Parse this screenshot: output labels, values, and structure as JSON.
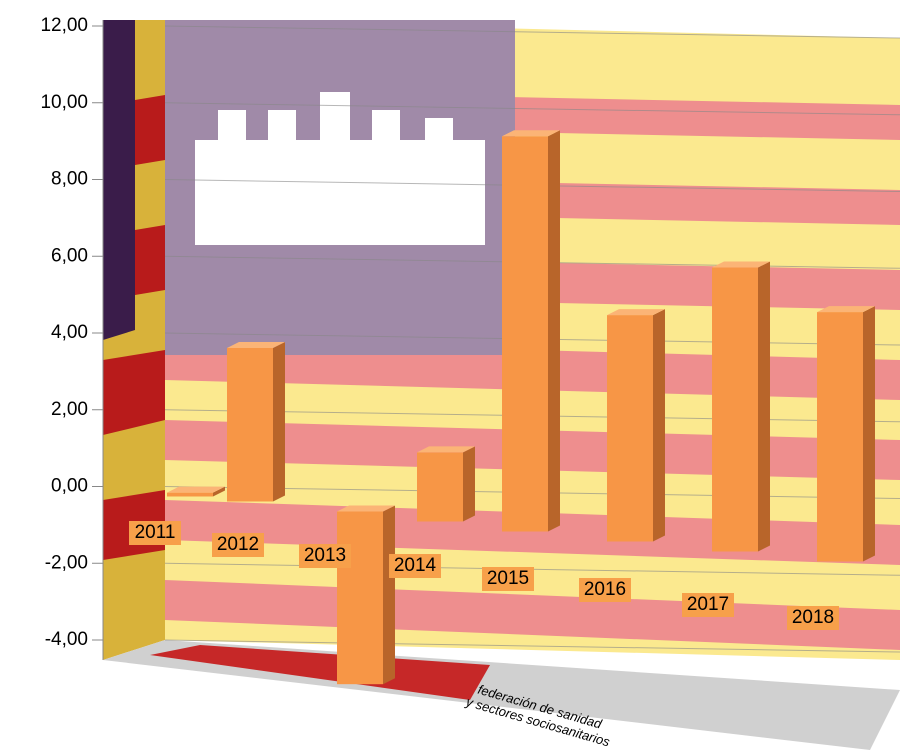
{
  "chart_data": {
    "type": "bar3d",
    "categories": [
      "2011",
      "2012",
      "2013",
      "2014",
      "2015",
      "2016",
      "2017",
      "2018"
    ],
    "values": [
      0.1,
      4.0,
      -4.5,
      1.8,
      10.3,
      5.9,
      7.4,
      6.5
    ],
    "color": "#f79646",
    "ylim": [
      -4,
      12
    ],
    "yticks": [
      {
        "value": -4,
        "label": "-4,00"
      },
      {
        "value": -2,
        "label": "-2,00"
      },
      {
        "value": 0,
        "label": "0,00"
      },
      {
        "value": 2,
        "label": "2,00"
      },
      {
        "value": 4,
        "label": "4,00"
      },
      {
        "value": 6,
        "label": "6,00"
      },
      {
        "value": 8,
        "label": "8,00"
      },
      {
        "value": 10,
        "label": "10,00"
      },
      {
        "value": 12,
        "label": "12,00"
      }
    ],
    "grid": true,
    "logo_text": [
      "federación de sanidad",
      "y sectores sociosanitarios"
    ]
  }
}
